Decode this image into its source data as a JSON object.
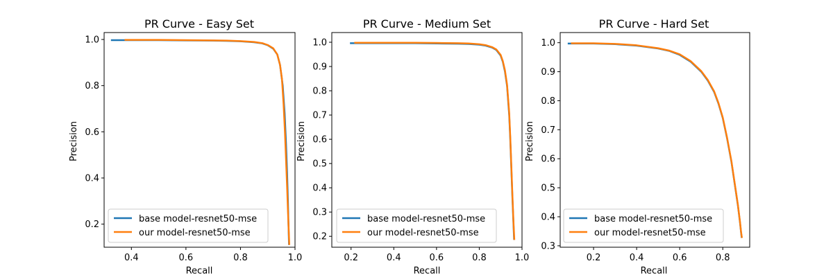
{
  "colors": {
    "base": "#1f77b4",
    "ours": "#ff7f0e"
  },
  "chart_data": [
    {
      "type": "line",
      "title": "PR Curve - Easy Set",
      "xlabel": "Recall",
      "ylabel": "Precision",
      "xlim": [
        0.3,
        1.0
      ],
      "ylim": [
        0.1,
        1.03
      ],
      "xticks": [
        0.4,
        0.6,
        0.8,
        1.0
      ],
      "xtick_labels": [
        "0.4",
        "0.6",
        "0.8",
        "1.0"
      ],
      "yticks": [
        0.2,
        0.4,
        0.6,
        0.8,
        1.0
      ],
      "ytick_labels": [
        "0.2",
        "0.4",
        "0.6",
        "0.8",
        "1.0"
      ],
      "legend_position": "lower-left",
      "series": [
        {
          "name": "base model-resnet50-mse",
          "x": [
            0.325,
            0.4,
            0.5,
            0.6,
            0.7,
            0.75,
            0.8,
            0.85,
            0.88,
            0.9,
            0.92,
            0.935,
            0.945,
            0.955,
            0.962,
            0.967,
            0.971,
            0.974,
            0.976,
            0.978
          ],
          "y": [
            0.997,
            0.997,
            0.997,
            0.996,
            0.995,
            0.994,
            0.992,
            0.988,
            0.983,
            0.975,
            0.96,
            0.935,
            0.89,
            0.8,
            0.68,
            0.55,
            0.42,
            0.3,
            0.2,
            0.11
          ]
        },
        {
          "name": "our model-resnet50-mse",
          "x": [
            0.375,
            0.4,
            0.5,
            0.6,
            0.7,
            0.75,
            0.8,
            0.85,
            0.88,
            0.9,
            0.92,
            0.935,
            0.945,
            0.952,
            0.958,
            0.963,
            0.967,
            0.971,
            0.974,
            0.977,
            0.979
          ],
          "y": [
            0.998,
            0.998,
            0.998,
            0.997,
            0.996,
            0.995,
            0.993,
            0.989,
            0.984,
            0.976,
            0.962,
            0.935,
            0.89,
            0.83,
            0.72,
            0.6,
            0.48,
            0.36,
            0.26,
            0.17,
            0.11
          ]
        }
      ]
    },
    {
      "type": "line",
      "title": "PR Curve - Medium Set",
      "xlabel": "Recall",
      "ylabel": "Precision",
      "xlim": [
        0.11,
        1.0
      ],
      "ylim": [
        0.155,
        1.04
      ],
      "xticks": [
        0.2,
        0.4,
        0.6,
        0.8,
        1.0
      ],
      "xtick_labels": [
        "0.2",
        "0.4",
        "0.6",
        "0.8",
        "1.0"
      ],
      "yticks": [
        0.2,
        0.3,
        0.4,
        0.5,
        0.6,
        0.7,
        0.8,
        0.9,
        1.0
      ],
      "ytick_labels": [
        "0.2",
        "0.3",
        "0.4",
        "0.5",
        "0.6",
        "0.7",
        "0.8",
        "0.9",
        "1.0"
      ],
      "legend_position": "lower-left",
      "series": [
        {
          "name": "base model-resnet50-mse",
          "x": [
            0.195,
            0.3,
            0.4,
            0.5,
            0.6,
            0.7,
            0.75,
            0.8,
            0.83,
            0.86,
            0.88,
            0.9,
            0.91,
            0.92,
            0.93,
            0.94,
            0.945,
            0.95,
            0.955,
            0.96,
            0.963
          ],
          "y": [
            0.996,
            0.996,
            0.996,
            0.996,
            0.995,
            0.994,
            0.993,
            0.99,
            0.986,
            0.978,
            0.968,
            0.945,
            0.92,
            0.88,
            0.82,
            0.7,
            0.6,
            0.48,
            0.36,
            0.25,
            0.185
          ]
        },
        {
          "name": "our model-resnet50-mse",
          "x": [
            0.215,
            0.3,
            0.4,
            0.5,
            0.6,
            0.7,
            0.75,
            0.8,
            0.83,
            0.86,
            0.88,
            0.9,
            0.91,
            0.92,
            0.93,
            0.94,
            0.945,
            0.95,
            0.955,
            0.96,
            0.964
          ],
          "y": [
            0.998,
            0.998,
            0.998,
            0.998,
            0.997,
            0.996,
            0.995,
            0.992,
            0.988,
            0.98,
            0.97,
            0.948,
            0.923,
            0.885,
            0.825,
            0.71,
            0.61,
            0.49,
            0.37,
            0.26,
            0.185
          ]
        }
      ]
    },
    {
      "type": "line",
      "title": "PR Curve - Hard Set",
      "xlabel": "Recall",
      "ylabel": "Precision",
      "xlim": [
        0.045,
        0.925
      ],
      "ylim": [
        0.295,
        1.035
      ],
      "xticks": [
        0.2,
        0.4,
        0.6,
        0.8
      ],
      "xtick_labels": [
        "0.2",
        "0.4",
        "0.6",
        "0.8"
      ],
      "yticks": [
        0.3,
        0.4,
        0.5,
        0.6,
        0.7,
        0.8,
        0.9,
        1.0
      ],
      "ytick_labels": [
        "0.3",
        "0.4",
        "0.5",
        "0.6",
        "0.7",
        "0.8",
        "0.9",
        "1.0"
      ],
      "legend_position": "lower-left",
      "series": [
        {
          "name": "base model-resnet50-mse",
          "x": [
            0.08,
            0.15,
            0.2,
            0.3,
            0.4,
            0.5,
            0.55,
            0.6,
            0.65,
            0.7,
            0.73,
            0.76,
            0.78,
            0.8,
            0.82,
            0.84,
            0.86,
            0.87,
            0.88,
            0.885,
            0.888
          ],
          "y": [
            0.997,
            0.997,
            0.997,
            0.995,
            0.99,
            0.98,
            0.972,
            0.958,
            0.935,
            0.9,
            0.87,
            0.83,
            0.79,
            0.74,
            0.67,
            0.59,
            0.49,
            0.44,
            0.38,
            0.345,
            0.327
          ]
        },
        {
          "name": "our model-resnet50-mse",
          "x": [
            0.095,
            0.15,
            0.2,
            0.3,
            0.4,
            0.5,
            0.55,
            0.6,
            0.65,
            0.7,
            0.73,
            0.76,
            0.78,
            0.8,
            0.82,
            0.84,
            0.86,
            0.87,
            0.88,
            0.885,
            0.889
          ],
          "y": [
            0.998,
            0.998,
            0.998,
            0.996,
            0.991,
            0.981,
            0.973,
            0.96,
            0.937,
            0.902,
            0.872,
            0.832,
            0.792,
            0.742,
            0.672,
            0.592,
            0.492,
            0.442,
            0.382,
            0.347,
            0.327
          ]
        }
      ]
    }
  ]
}
